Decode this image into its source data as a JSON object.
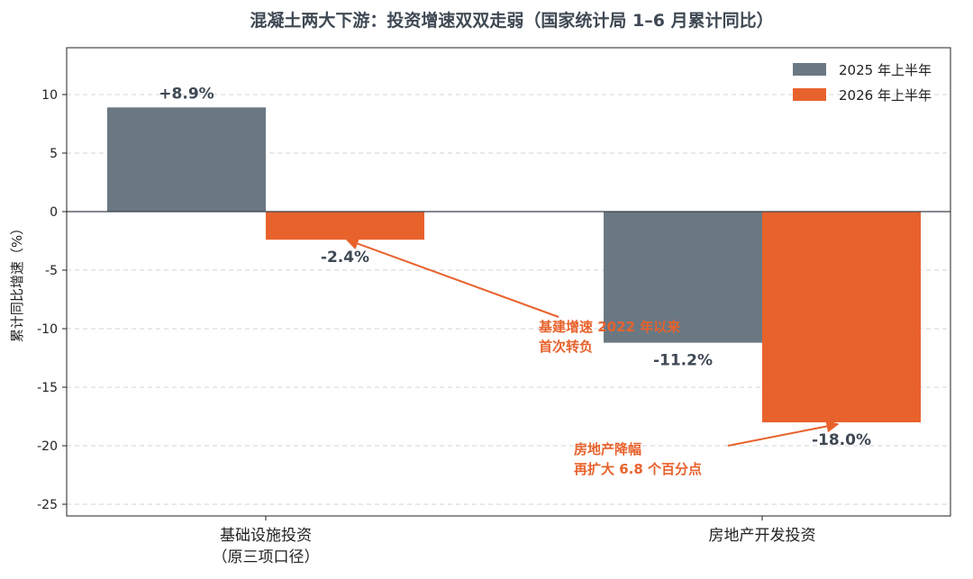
{
  "chart_data": {
    "type": "bar",
    "title": "混凝土两大下游：投资增速双双走弱（国家统计局 1–6 月累计同比）",
    "ylabel": "累计同比增速（%）",
    "ylim": [
      -26,
      14
    ],
    "yticks": [
      10,
      5,
      0,
      -5,
      -10,
      -15,
      -20,
      -25
    ],
    "grid": true,
    "legend_position": "top-right",
    "categories": [
      [
        "基础设施投资",
        "（原三项口径）"
      ],
      [
        "房地产开发投资"
      ]
    ],
    "series": [
      {
        "name": "2025 年上半年",
        "color": "#6a7883",
        "values": [
          8.9,
          -11.2
        ],
        "labels": [
          "+8.9%",
          "-11.2%"
        ]
      },
      {
        "name": "2026 年上半年",
        "color": "#e8622c",
        "values": [
          -2.4,
          -18.0
        ],
        "labels": [
          "-2.4%",
          "-18.0%"
        ]
      }
    ],
    "annotations": [
      {
        "lines": [
          "基建增速 2022 年以来",
          "首次转负"
        ],
        "target": {
          "category": 0,
          "series": 1,
          "value": -2.4
        }
      },
      {
        "lines": [
          "房地产降幅",
          "再扩大 6.8 个百分点"
        ],
        "target": {
          "category": 1,
          "series": 1,
          "value": -18.0
        }
      }
    ]
  }
}
